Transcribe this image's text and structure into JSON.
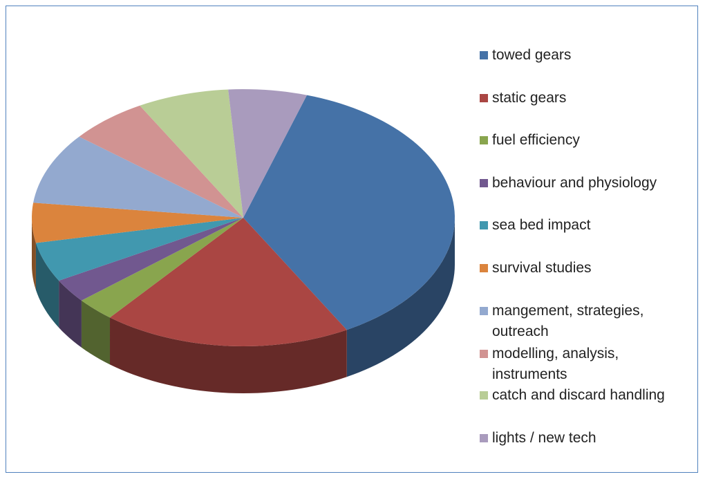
{
  "chart_data": {
    "type": "pie3d",
    "categories": [
      "towed gears",
      "static gears",
      "fuel efficiency",
      "behaviour and physiology",
      "sea bed impact",
      "survival studies",
      "mangement, strategies, outreach",
      "modelling, analysis, instruments",
      "catch and discard handling",
      "lights / new tech"
    ],
    "values": [
      37,
      19,
      3,
      3,
      5,
      5,
      9,
      6,
      7,
      6
    ],
    "colors": [
      "#4572a7",
      "#aa4643",
      "#89a54e",
      "#71588f",
      "#4198af",
      "#db843d",
      "#93a9cf",
      "#d19392",
      "#b9cd96",
      "#a99bbd"
    ]
  }
}
